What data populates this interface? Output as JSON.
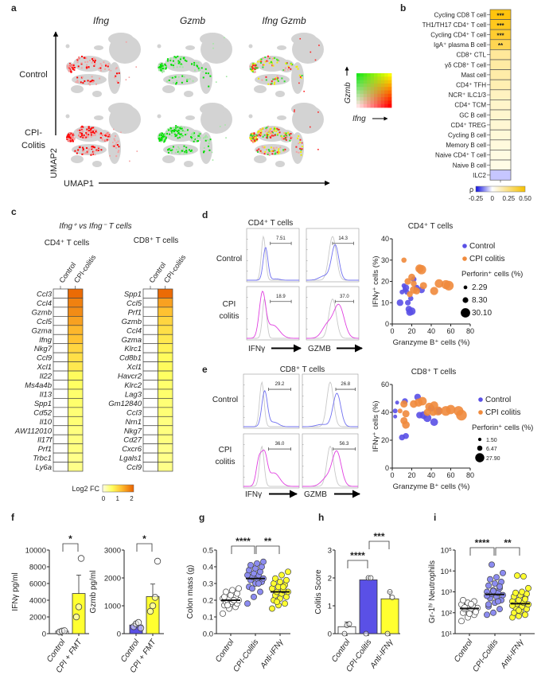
{
  "panel_labels": [
    "a",
    "b",
    "c",
    "d",
    "e",
    "f",
    "g",
    "h",
    "i"
  ],
  "colors": {
    "control_blue": "#5a50e6",
    "cpi_orange": "#f08a3c",
    "yellow": "#ffff30",
    "cpi_dot_blue": "#8c8cf0",
    "hist_blue": "#7070f0",
    "hist_magenta": "#e040e0",
    "umap_gray": "#d3d3d3"
  },
  "chart_data": [
    {
      "type": "umap",
      "columns": [
        "Ifng",
        "Gzmb",
        "Ifng Gzmb"
      ],
      "rows": [
        {
          "lines": [
            "Control"
          ]
        },
        {
          "lines": [
            "CPI-",
            "Colitis"
          ]
        }
      ],
      "xlabel": "UMAP1",
      "ylabel": "UMAP2",
      "legend": {
        "x_label": "Ifng",
        "y_label": "Gzmb"
      }
    },
    {
      "type": "heatmap",
      "rows": [
        "Cycling CD8 T cell",
        "TH1/TH17 CD4⁺ T cell",
        "Cycling CD4⁺ T cell",
        "IgA⁺ plasma B cell",
        "CD8⁺ CTL",
        "γδ CD8⁺ T cell",
        "Mast cell",
        "CD4⁺ TFH",
        "NCR⁺ ILC1/3",
        "CD4⁺ TCM",
        "GC B cell",
        "CD4⁺ TREG",
        "Cycling B cell",
        "Memory B cell",
        "Naive CD4⁺ T cell",
        "Naive B cell",
        "ILC2"
      ],
      "values": [
        0.47,
        0.44,
        0.4,
        0.33,
        0.18,
        0.16,
        0.15,
        0.13,
        0.1,
        0.08,
        0.07,
        0.06,
        0.05,
        0.04,
        0.03,
        0.02,
        -0.12
      ],
      "stars": [
        "***",
        "***",
        "***",
        "**",
        "",
        "",
        "",
        "",
        "",
        "",
        "",
        "",
        "",
        "",
        "",
        "",
        ""
      ],
      "colorbar": {
        "label": "ρ",
        "ticks": [
          "-0.25",
          "0",
          "0.25",
          "0.50"
        ],
        "tick_values": [
          -0.25,
          0,
          0.25,
          0.5
        ],
        "range": [
          -0.25,
          0.5
        ]
      }
    },
    {
      "type": "heatmap",
      "title": "Ifng⁺ vs Ifng⁻ T cells",
      "groups": [
        {
          "title": "CD4⁺ T cells",
          "columns": [
            "Control",
            "CPI-colitis"
          ],
          "genes": [
            "Ccl3",
            "Ccl4",
            "Gzmb",
            "Ccl5",
            "Gzma",
            "Ifng",
            "Nkg7",
            "Ccl9",
            "Xcl1",
            "Il22",
            "Ms4a4b",
            "Il13",
            "Spp1",
            "Cd52",
            "Il10",
            "AW112010",
            "Il17f",
            "Prf1",
            "Trbc1",
            "Ly6a"
          ],
          "values": [
            2.1,
            1.9,
            1.8,
            1.6,
            1.4,
            1.3,
            1.1,
            1.0,
            0.9,
            0.7,
            0.65,
            0.6,
            0.6,
            0.55,
            0.55,
            0.5,
            0.5,
            0.5,
            0.45,
            0.45
          ]
        },
        {
          "title": "CD8⁺ T cells",
          "columns": [
            "Control",
            "CPI-colitis"
          ],
          "genes": [
            "Spp1",
            "Ccl5",
            "Prf1",
            "Gzmb",
            "Ccl4",
            "Gzma",
            "Klrc1",
            "Cd8b1",
            "Xcl1",
            "Havcr2",
            "Klrc2",
            "Lag3",
            "Gm12840",
            "Ccl3",
            "Nrn1",
            "Nkg7",
            "Cd27",
            "Cxcr6",
            "Lgals1",
            "Ccl9"
          ],
          "values": [
            2.1,
            1.6,
            1.3,
            1.1,
            1.0,
            0.9,
            0.8,
            0.7,
            0.7,
            0.65,
            0.6,
            0.6,
            0.55,
            0.55,
            0.5,
            0.5,
            0.5,
            0.45,
            0.45,
            0.45
          ]
        }
      ],
      "colorbar": {
        "label": "Log2 FC",
        "ticks": [
          "0",
          "1",
          "2"
        ],
        "range": [
          0,
          2.2
        ]
      }
    },
    {
      "type": "scatter",
      "hist": {
        "title": "CD4⁺ T cells",
        "rows": [
          {
            "lines": [
              "Control"
            ]
          },
          {
            "lines": [
              "CPI",
              "colitis"
            ]
          }
        ],
        "markers": [
          "IFNγ",
          "GZMB"
        ],
        "gates": [
          [
            "7.51",
            "14.3"
          ],
          [
            "18.9",
            "37.0"
          ]
        ]
      },
      "title": "CD4⁺ T cells",
      "xlabel": "Granzyme B⁺ cells (%)",
      "ylabel": "IFNγ⁺ cells (%)",
      "xlim": [
        0,
        80
      ],
      "ylim": [
        0,
        40
      ],
      "xticks": [
        "0",
        "20",
        "40",
        "60",
        "80"
      ],
      "yticks": [
        "0",
        "10",
        "20",
        "30",
        "40"
      ],
      "series": [
        {
          "name": "Control",
          "color": "#5a50e6",
          "points": [
            [
              8,
              10,
              8
            ],
            [
              10,
              15,
              3
            ],
            [
              12,
              18,
              3
            ],
            [
              14,
              17,
              8
            ],
            [
              16,
              10,
              5
            ],
            [
              17,
              7,
              8
            ],
            [
              18,
              5.5,
              10
            ],
            [
              19,
              12,
              4
            ],
            [
              20,
              6,
              12
            ],
            [
              22,
              21,
              5
            ],
            [
              25,
              17,
              6
            ],
            [
              30,
              16,
              8
            ],
            [
              13,
              16,
              3
            ],
            [
              15,
              15,
              4
            ]
          ]
        },
        {
          "name": "CPI colitis",
          "color": "#f08a3c",
          "points": [
            [
              12,
              30,
              4
            ],
            [
              16,
              20,
              8
            ],
            [
              20,
              22,
              9
            ],
            [
              18,
              14,
              6
            ],
            [
              22,
              16,
              12
            ],
            [
              25,
              15.5,
              9
            ],
            [
              28,
              26,
              15
            ],
            [
              30,
              25.5,
              20
            ],
            [
              32,
              18,
              10
            ],
            [
              43,
              15.5,
              14
            ],
            [
              48,
              19,
              16
            ],
            [
              55,
              18.5,
              18
            ],
            [
              58,
              18,
              22
            ],
            [
              22,
              19,
              6
            ]
          ]
        }
      ],
      "size_legend": {
        "title": "Perforin⁺ cells (%)",
        "values": [
          "2.29",
          "8.30",
          "30.10"
        ],
        "sizes": [
          2.29,
          8.3,
          30.1
        ]
      }
    },
    {
      "type": "scatter",
      "hist": {
        "title": "CD8⁺ T cells",
        "rows": [
          {
            "lines": [
              "Control"
            ]
          },
          {
            "lines": [
              "CPI",
              "colitis"
            ]
          }
        ],
        "markers": [
          "IFNγ",
          "GZMB"
        ],
        "gates": [
          [
            "29.2",
            "26.8"
          ],
          [
            "36.0",
            "56.3"
          ]
        ]
      },
      "title": "CD8⁺ T cells",
      "xlabel": "Granzyme B⁺ cells (%)",
      "ylabel": "IFNγ⁺ cells (%)",
      "xlim": [
        0,
        80
      ],
      "ylim": [
        0,
        60
      ],
      "xticks": [
        "0",
        "20",
        "40",
        "60",
        "80"
      ],
      "yticks": [
        "0",
        "20",
        "40",
        "60"
      ],
      "series": [
        {
          "name": "Control",
          "color": "#5a50e6",
          "points": [
            [
              3,
              41,
              3
            ],
            [
              5,
              47,
              1.5
            ],
            [
              3,
              37,
              1.5
            ],
            [
              10,
              22,
              6
            ],
            [
              14,
              23,
              6
            ],
            [
              13,
              48,
              6
            ],
            [
              26,
              51,
              8
            ],
            [
              28,
              38,
              8
            ],
            [
              32,
              38,
              12
            ],
            [
              36,
              36,
              14
            ],
            [
              40,
              43,
              8
            ],
            [
              43,
              33,
              12
            ],
            [
              48,
              41,
              10
            ]
          ]
        },
        {
          "name": "CPI colitis",
          "color": "#f08a3c",
          "points": [
            [
              8,
              41,
              3
            ],
            [
              12,
              46,
              10
            ],
            [
              14,
              39,
              10
            ],
            [
              12,
              34,
              10
            ],
            [
              14,
              31,
              12
            ],
            [
              22,
              46,
              12
            ],
            [
              27,
              47,
              14
            ],
            [
              31,
              48,
              16
            ],
            [
              36,
              40,
              10
            ],
            [
              38,
              44,
              14
            ],
            [
              43,
              45,
              14
            ],
            [
              47,
              41,
              18
            ],
            [
              55,
              41,
              22
            ],
            [
              68,
              41,
              22
            ],
            [
              71,
              38,
              27.9
            ],
            [
              42,
              40,
              10
            ],
            [
              60,
              42,
              20
            ]
          ]
        }
      ],
      "size_legend": {
        "title": "Perforin⁺ cells (%)",
        "values": [
          "1.50",
          "6.47",
          "27.90"
        ],
        "sizes": [
          1.5,
          6.47,
          27.9
        ]
      }
    },
    {
      "type": "bar",
      "charts": [
        {
          "ylabel": "IFNγ pg/ml",
          "ylim": [
            0,
            10000
          ],
          "yticks": [
            "0",
            "2000",
            "4000",
            "6000",
            "8000",
            "10000"
          ],
          "tick_values": [
            0,
            2000,
            4000,
            6000,
            8000,
            10000
          ],
          "categories": [
            "Control",
            "CPI + FMT"
          ],
          "means": [
            300,
            4800
          ],
          "errors": [
            100,
            7000
          ],
          "bar_colors": [
            "#ffffff",
            "#ffff30"
          ],
          "points": [
            [
              200,
              300,
              350
            ],
            [
              2000,
              3200,
              9000
            ]
          ],
          "significance": [
            {
              "pair": [
                0,
                1
              ],
              "label": "*"
            }
          ]
        },
        {
          "ylabel": "Gzmb pg/ml",
          "ylim": [
            0,
            3000
          ],
          "yticks": [
            "0",
            "1000",
            "2000",
            "3000"
          ],
          "tick_values": [
            0,
            1000,
            2000,
            3000
          ],
          "categories": [
            "Control",
            "CPI + FMT"
          ],
          "means": [
            310,
            1330
          ],
          "errors": [
            380,
            1780
          ],
          "bar_colors": [
            "#5a50e6",
            "#ffff30"
          ],
          "points": [
            [
              250,
              350,
              400,
              200
            ],
            [
              800,
              1000,
              1300,
              2600
            ]
          ],
          "significance": [
            {
              "pair": [
                0,
                1
              ],
              "label": "*"
            }
          ]
        }
      ]
    },
    {
      "type": "scatter",
      "ylabel": "Colon mass (g)",
      "ylim": [
        0,
        0.5
      ],
      "yticks": [
        "0.0",
        "0.1",
        "0.2",
        "0.3",
        "0.4",
        "0.5"
      ],
      "tick_values": [
        0,
        0.1,
        0.2,
        0.3,
        0.4,
        0.5
      ],
      "categories": [
        "Control",
        "CPI-Colitis",
        "Anti-IFNγ"
      ],
      "medians": [
        0.2,
        0.33,
        0.25
      ],
      "point_colors": [
        "#ffffff",
        "#8c8cf0",
        "#ffff30"
      ],
      "points": [
        [
          0.12,
          0.15,
          0.16,
          0.17,
          0.18,
          0.18,
          0.19,
          0.19,
          0.2,
          0.2,
          0.2,
          0.21,
          0.21,
          0.22,
          0.22,
          0.23,
          0.24,
          0.25,
          0.26,
          0.27,
          0.17,
          0.2
        ],
        [
          0.18,
          0.22,
          0.25,
          0.28,
          0.3,
          0.31,
          0.32,
          0.33,
          0.33,
          0.34,
          0.35,
          0.35,
          0.36,
          0.37,
          0.38,
          0.39,
          0.4,
          0.41,
          0.42,
          0.43,
          0.27,
          0.3
        ],
        [
          0.15,
          0.17,
          0.18,
          0.2,
          0.21,
          0.22,
          0.23,
          0.24,
          0.25,
          0.25,
          0.26,
          0.27,
          0.28,
          0.29,
          0.3,
          0.31,
          0.32,
          0.33,
          0.35,
          0.37,
          0.19,
          0.28
        ]
      ],
      "significance": [
        {
          "pair": [
            0,
            1
          ],
          "label": "****"
        },
        {
          "pair": [
            1,
            2
          ],
          "label": "**"
        }
      ]
    },
    {
      "type": "bar",
      "ylabel": "Colitis Score",
      "ylim": [
        0,
        3
      ],
      "yticks": [
        "0",
        "1",
        "2",
        "3"
      ],
      "tick_values": [
        0,
        1,
        2,
        3
      ],
      "categories": [
        "Control",
        "CPI-Colitis",
        "Anti-IFNγ"
      ],
      "means": [
        0.25,
        1.93,
        1.25
      ],
      "errors": [
        0.42,
        2.0,
        1.5
      ],
      "bar_colors": [
        "#ffffff",
        "#5a50e6",
        "#ffff30"
      ],
      "points": [
        [
          0,
          0.3,
          0.35
        ],
        [
          0,
          2,
          2
        ],
        [
          0,
          1.5,
          1.3
        ]
      ],
      "significance": [
        {
          "pair": [
            0,
            1
          ],
          "label": "****"
        },
        {
          "pair": [
            1,
            2
          ],
          "label": "***"
        }
      ]
    },
    {
      "type": "scatter",
      "ylabel": "Gr-1ʰⁱ Neutrophils",
      "yscale": "log",
      "ylim": [
        10,
        100000
      ],
      "yticks": [
        "10¹",
        "10²",
        "10³",
        "10⁴",
        "10⁵"
      ],
      "tick_values": [
        10,
        100,
        1000,
        10000,
        100000
      ],
      "categories": [
        "Control",
        "CPI-Colitis",
        "Anti-IFNγ"
      ],
      "medians": [
        160,
        750,
        270
      ],
      "point_colors": [
        "#ffffff",
        "#8c8cf0",
        "#ffff30"
      ],
      "points": [
        [
          40,
          60,
          80,
          100,
          120,
          130,
          150,
          160,
          170,
          200,
          220,
          250,
          300,
          350,
          400,
          90,
          110,
          180,
          260
        ],
        [
          80,
          100,
          150,
          200,
          300,
          400,
          500,
          600,
          700,
          800,
          900,
          1000,
          1200,
          1500,
          2000,
          2500,
          3000,
          4000,
          5000,
          8000,
          20000,
          350,
          650,
          1100,
          1800,
          250
        ],
        [
          60,
          70,
          80,
          100,
          120,
          150,
          180,
          200,
          250,
          270,
          300,
          350,
          400,
          500,
          600,
          700,
          800,
          900,
          1000,
          1500,
          6000,
          5500,
          220,
          130,
          450
        ]
      ],
      "significance": [
        {
          "pair": [
            0,
            1
          ],
          "label": "****"
        },
        {
          "pair": [
            1,
            2
          ],
          "label": "**"
        }
      ]
    }
  ]
}
